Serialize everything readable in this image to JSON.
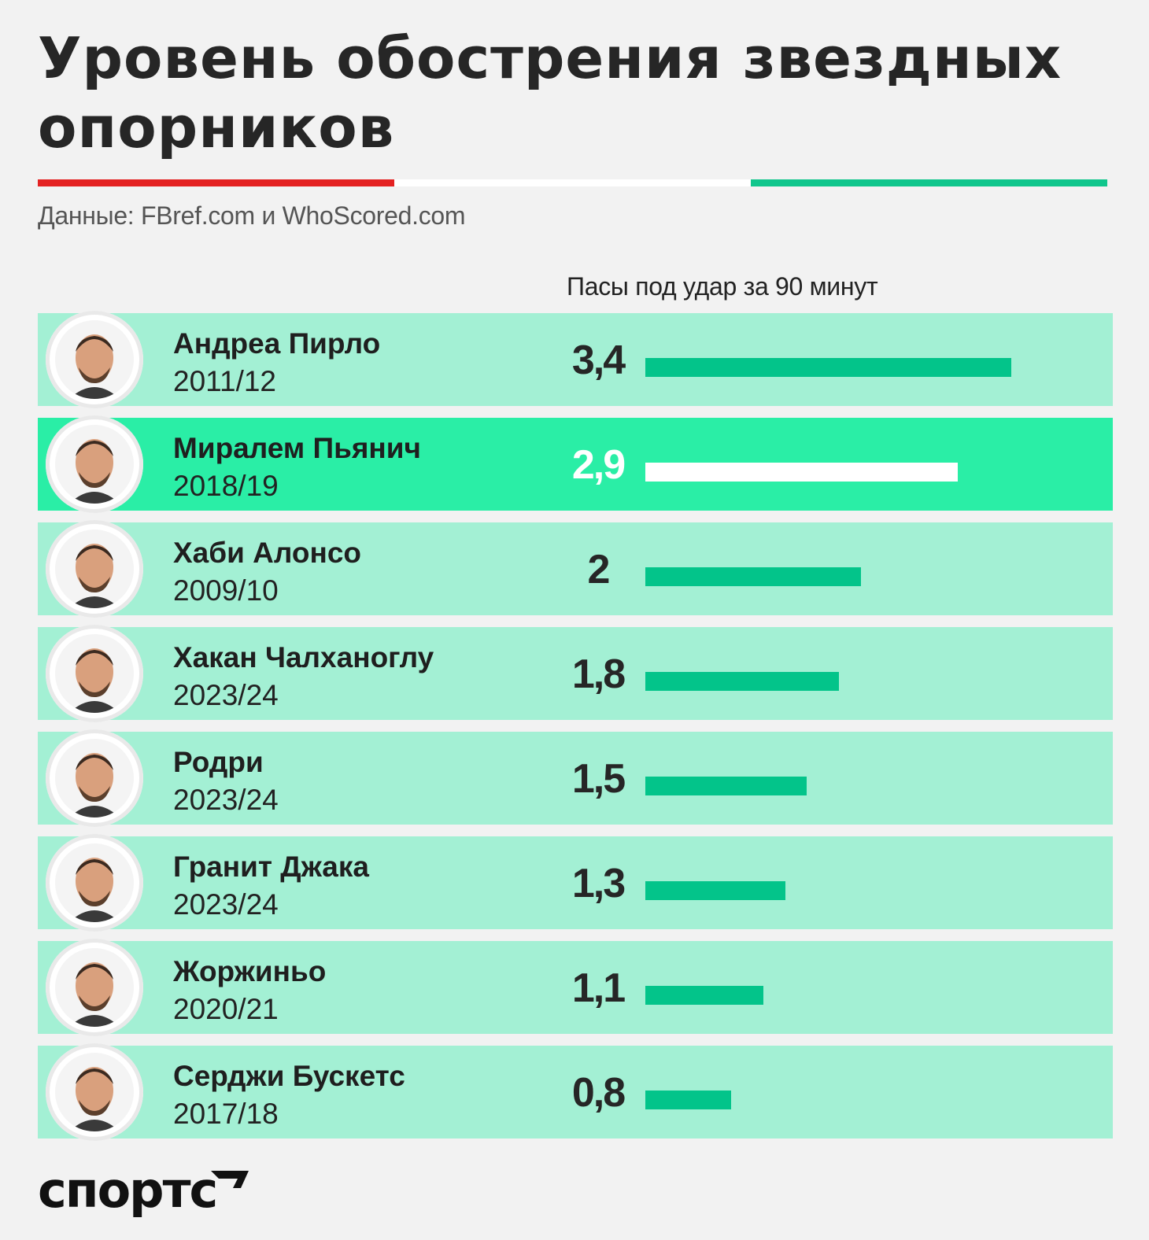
{
  "title": "Уровень обострения звездных опорников",
  "source": "Данные: FBref.com и WhoScored.com",
  "brand": "спортс",
  "colors": {
    "flag": [
      "#e42222",
      "#ffffff",
      "#10c68c"
    ],
    "row_bg": "#a3f0d4",
    "row_highlight_bg": "#2aeea6",
    "bar": "#03c48a",
    "bar_highlight": "#ffffff"
  },
  "chart_data": {
    "type": "bar",
    "orientation": "horizontal",
    "metric_label": "Пасы под удар за 90 минут",
    "xlim": [
      0,
      3.4
    ],
    "highlighted": "Миралем Пьянич",
    "rows": [
      {
        "name": "Андреа Пирло",
        "season": "2011/12",
        "value": 3.4,
        "label": "3,4",
        "icon": "player-photo"
      },
      {
        "name": "Миралем Пьянич",
        "season": "2018/19",
        "value": 2.9,
        "label": "2,9",
        "icon": "player-photo"
      },
      {
        "name": "Хаби Алонсо",
        "season": "2009/10",
        "value": 2.0,
        "label": "2",
        "icon": "player-photo"
      },
      {
        "name": "Хакан Чалханоглу",
        "season": "2023/24",
        "value": 1.8,
        "label": "1,8",
        "icon": "player-photo"
      },
      {
        "name": "Родри",
        "season": "2023/24",
        "value": 1.5,
        "label": "1,5",
        "icon": "player-photo"
      },
      {
        "name": "Гранит Джака",
        "season": "2023/24",
        "value": 1.3,
        "label": "1,3",
        "icon": "player-photo"
      },
      {
        "name": "Жоржиньо",
        "season": "2020/21",
        "value": 1.1,
        "label": "1,1",
        "icon": "player-photo"
      },
      {
        "name": "Серджи Бускетс",
        "season": "2017/18",
        "value": 0.8,
        "label": "0,8",
        "icon": "player-photo"
      }
    ]
  }
}
